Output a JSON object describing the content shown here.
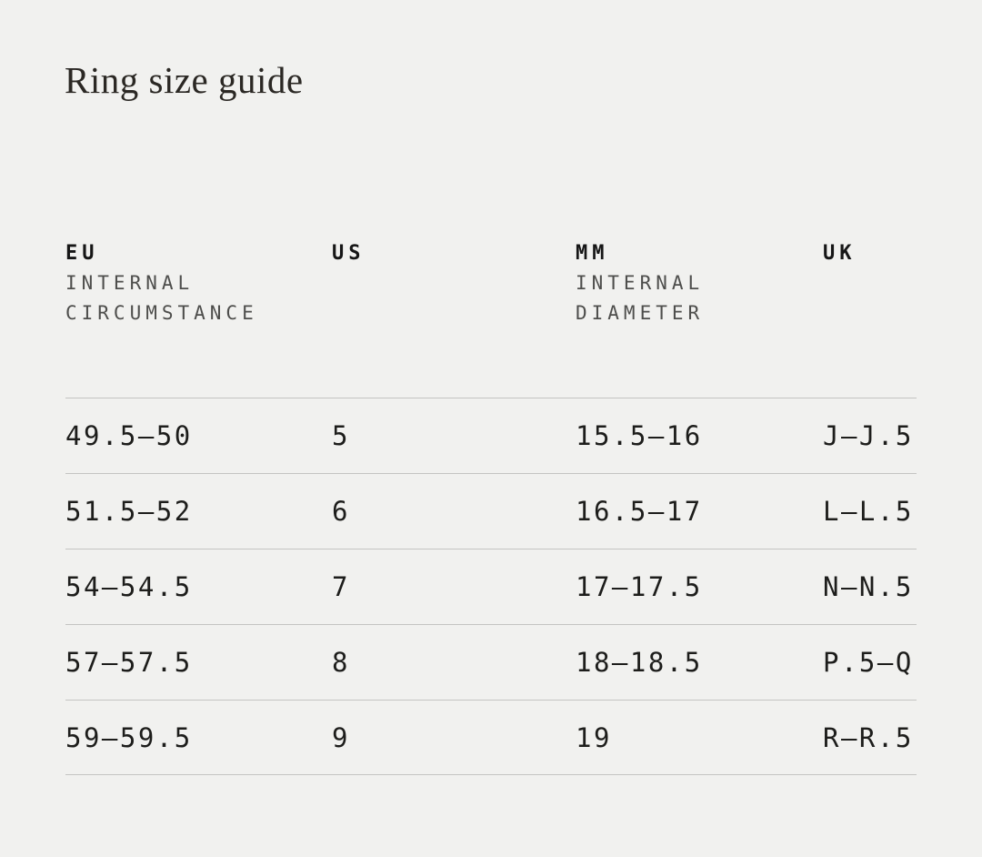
{
  "page": {
    "title": "Ring size guide",
    "background_color": "#f1f1ef",
    "divider_color": "#c4c4c2",
    "text_color": "#1d1d1b",
    "subheader_color": "#4e4e4c"
  },
  "table": {
    "columns": [
      {
        "code": "EU",
        "sub1": "INTERNAL",
        "sub2": "CIRCUMSTANCE"
      },
      {
        "code": "US",
        "sub1": "",
        "sub2": ""
      },
      {
        "code": "MM",
        "sub1": "INTERNAL",
        "sub2": "DIAMETER"
      },
      {
        "code": "UK",
        "sub1": "",
        "sub2": ""
      }
    ],
    "rows": [
      [
        "49.5—50",
        "5",
        "15.5—16",
        "J—J.5"
      ],
      [
        "51.5—52",
        "6",
        "16.5—17",
        "L—L.5"
      ],
      [
        "54—54.5",
        "7",
        "17—17.5",
        "N—N.5"
      ],
      [
        "57—57.5",
        "8",
        "18—18.5",
        "P.5—Q"
      ],
      [
        "59—59.5",
        "9",
        "19",
        "R—R.5"
      ]
    ]
  }
}
